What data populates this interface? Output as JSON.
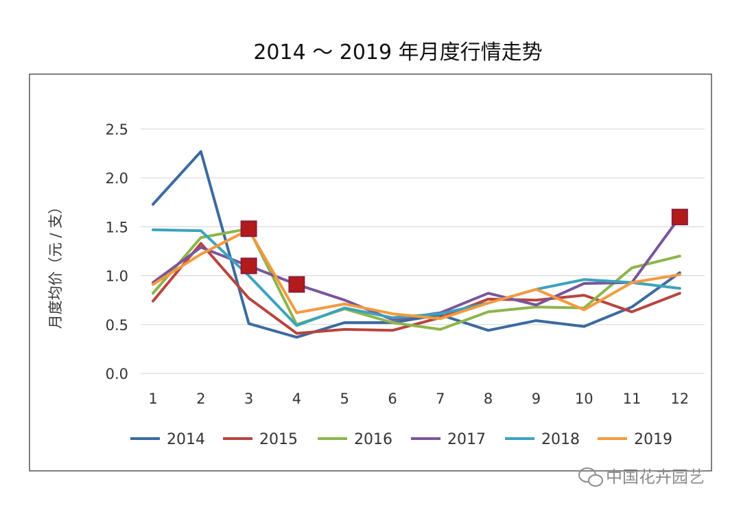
{
  "chart_data": {
    "type": "line",
    "title": "2014 ～ 2019 年月度行情走势",
    "ylabel": "月度均价（元 / 支）",
    "xlabel": "",
    "categories": [
      "1",
      "2",
      "3",
      "4",
      "5",
      "6",
      "7",
      "8",
      "9",
      "10",
      "11",
      "12"
    ],
    "y_ticks": [
      "0.0",
      "0.5",
      "1.0",
      "1.5",
      "2.0",
      "2.5"
    ],
    "ylim": [
      0,
      2.5
    ],
    "grid": true,
    "legend_position": "bottom",
    "series": [
      {
        "name": "2014",
        "color": "#3b6aa0",
        "values": [
          1.73,
          2.27,
          0.51,
          0.37,
          0.52,
          0.52,
          0.6,
          0.44,
          0.54,
          0.48,
          0.68,
          1.03
        ]
      },
      {
        "name": "2015",
        "color": "#b8443f",
        "values": [
          0.74,
          1.33,
          0.77,
          0.41,
          0.45,
          0.44,
          0.57,
          0.76,
          0.75,
          0.8,
          0.63,
          0.82
        ]
      },
      {
        "name": "2016",
        "color": "#8db54b",
        "values": [
          0.82,
          1.39,
          1.48,
          0.5,
          0.66,
          0.52,
          0.45,
          0.63,
          0.68,
          0.67,
          1.08,
          1.2
        ]
      },
      {
        "name": "2017",
        "color": "#7a559b",
        "values": [
          0.93,
          1.29,
          1.1,
          0.91,
          0.75,
          0.55,
          0.62,
          0.82,
          0.7,
          0.92,
          0.93,
          1.6
        ]
      },
      {
        "name": "2018",
        "color": "#3ba3bd",
        "values": [
          1.47,
          1.46,
          1.0,
          0.49,
          0.67,
          0.57,
          0.61,
          0.72,
          0.86,
          0.96,
          0.93,
          0.87
        ]
      },
      {
        "name": "2019",
        "color": "#f39a3e",
        "values": [
          0.91,
          1.22,
          1.47,
          0.62,
          0.71,
          0.61,
          0.56,
          0.72,
          0.86,
          0.65,
          0.93,
          1.01
        ]
      }
    ],
    "highlighted_points": [
      {
        "month": "3",
        "value": 1.48
      },
      {
        "month": "3",
        "value": 1.1
      },
      {
        "month": "4",
        "value": 0.91
      },
      {
        "month": "12",
        "value": 1.6
      }
    ]
  },
  "watermark": {
    "text": "中国花卉园艺",
    "icon": "wechat-icon"
  }
}
